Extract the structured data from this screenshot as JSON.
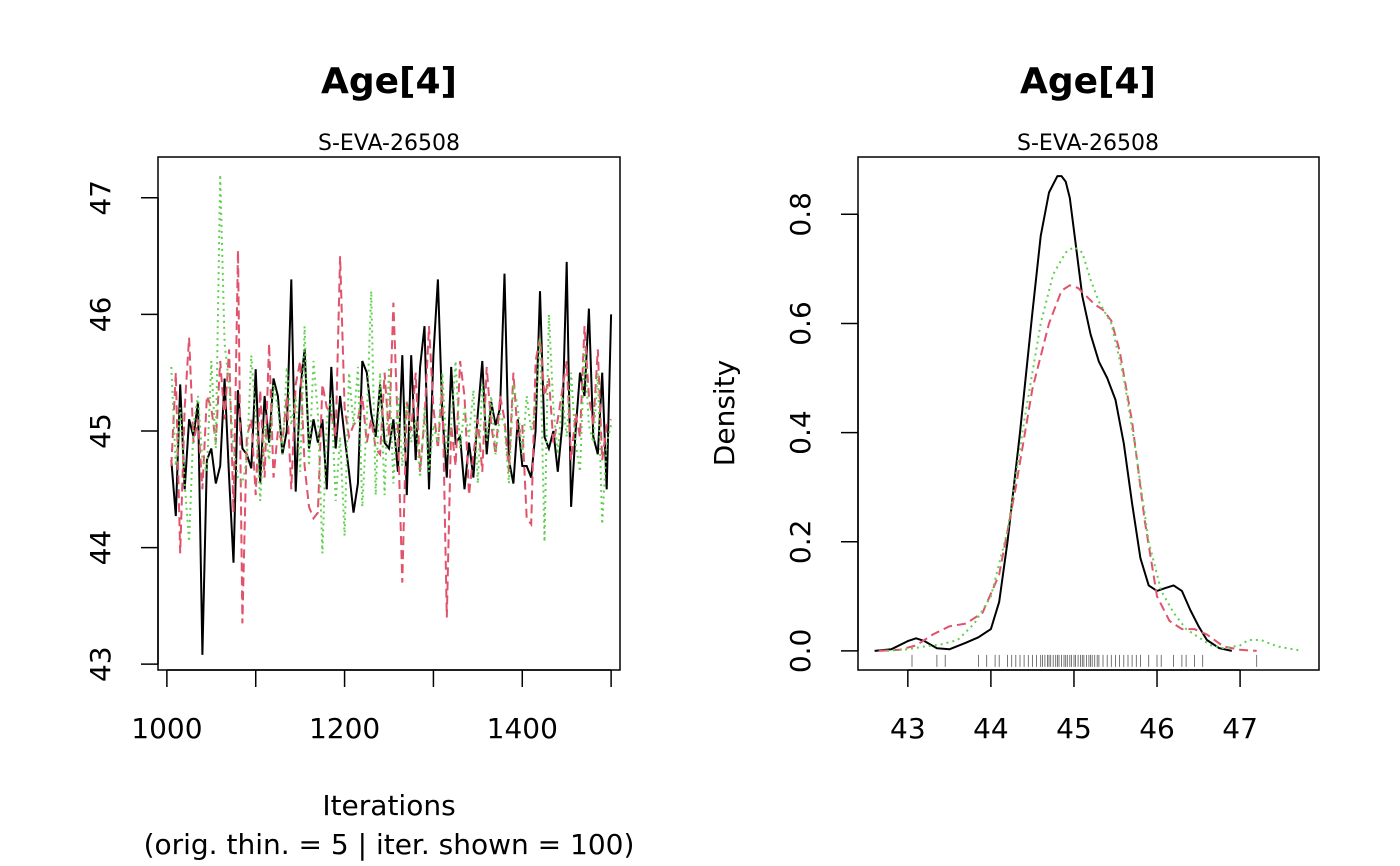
{
  "figure": {
    "background": "#ffffff",
    "series_colors": [
      "#000000",
      "#DF536B",
      "#61D04F"
    ]
  },
  "chart_data": [
    {
      "type": "line",
      "title": "Age[4]",
      "subtitle": "S-EVA-26508",
      "xlabel": "Iterations",
      "xlabel_line2": "(orig. thin. = 5 | iter. shown = 100)",
      "ylabel": "",
      "xlim": [
        990,
        1510
      ],
      "ylim": [
        42.95,
        47.35
      ],
      "xticks": [
        1000,
        1200,
        1400
      ],
      "xminor_ticks": [
        1000,
        1100,
        1200,
        1300,
        1400,
        1500
      ],
      "yticks": [
        43,
        44,
        45,
        46,
        47
      ],
      "grid": false,
      "x": [
        1005,
        1010,
        1015,
        1020,
        1025,
        1030,
        1035,
        1040,
        1045,
        1050,
        1055,
        1060,
        1065,
        1070,
        1075,
        1080,
        1085,
        1090,
        1095,
        1100,
        1105,
        1110,
        1115,
        1120,
        1125,
        1130,
        1135,
        1140,
        1145,
        1150,
        1155,
        1160,
        1165,
        1170,
        1175,
        1180,
        1185,
        1190,
        1195,
        1200,
        1205,
        1210,
        1215,
        1220,
        1225,
        1230,
        1235,
        1240,
        1245,
        1250,
        1255,
        1260,
        1265,
        1270,
        1275,
        1280,
        1285,
        1290,
        1295,
        1300,
        1305,
        1310,
        1315,
        1320,
        1325,
        1330,
        1335,
        1340,
        1345,
        1350,
        1355,
        1360,
        1365,
        1370,
        1375,
        1380,
        1385,
        1390,
        1395,
        1400,
        1405,
        1410,
        1415,
        1420,
        1425,
        1430,
        1435,
        1440,
        1445,
        1450,
        1455,
        1460,
        1465,
        1470,
        1475,
        1480,
        1485,
        1490,
        1495,
        1500
      ],
      "series": [
        {
          "color": "#000000",
          "dash": "solid",
          "values": [
            44.75,
            44.27,
            45.4,
            44.5,
            45.1,
            44.95,
            45.25,
            43.08,
            44.75,
            44.85,
            44.55,
            44.7,
            45.45,
            44.6,
            43.87,
            45.35,
            44.85,
            44.8,
            44.68,
            45.53,
            44.55,
            45.3,
            44.9,
            45.45,
            45.3,
            44.8,
            45.0,
            46.3,
            44.48,
            45.35,
            45.7,
            44.85,
            45.1,
            44.9,
            45.1,
            44.5,
            45.55,
            44.85,
            45.3,
            44.95,
            44.65,
            44.3,
            44.55,
            45.6,
            45.5,
            45.15,
            44.95,
            45.4,
            44.9,
            44.85,
            45.1,
            44.65,
            45.65,
            44.45,
            45.65,
            44.75,
            45.55,
            45.9,
            44.5,
            45.65,
            46.3,
            45.15,
            44.6,
            45.55,
            44.9,
            44.95,
            44.5,
            44.9,
            44.6,
            45.15,
            45.6,
            44.8,
            45.25,
            45.05,
            45.2,
            46.35,
            44.75,
            44.55,
            45.1,
            44.7,
            44.7,
            44.6,
            45.0,
            46.2,
            44.95,
            44.85,
            45.0,
            44.65,
            45.05,
            46.45,
            44.35,
            45.0,
            45.5,
            45.3,
            46.05,
            44.95,
            44.8,
            45.5,
            44.5,
            46.0
          ]
        },
        {
          "color": "#DF536B",
          "dash": "dashed",
          "values": [
            44.7,
            45.5,
            43.95,
            45.2,
            45.8,
            44.9,
            45.1,
            44.5,
            45.3,
            45.2,
            44.9,
            45.6,
            45.1,
            45.7,
            44.3,
            46.55,
            43.35,
            44.95,
            45.1,
            44.45,
            45.35,
            44.6,
            45.75,
            44.6,
            45.0,
            44.9,
            45.3,
            44.5,
            45.4,
            45.6,
            44.7,
            44.35,
            44.25,
            44.3,
            45.4,
            45.2,
            45.15,
            44.95,
            46.5,
            45.2,
            44.95,
            45.05,
            45.1,
            45.3,
            44.9,
            45.1,
            44.85,
            44.8,
            45.5,
            44.95,
            46.1,
            45.0,
            43.7,
            45.25,
            45.0,
            45.5,
            44.65,
            45.1,
            45.9,
            45.2,
            44.85,
            45.4,
            43.4,
            45.05,
            44.7,
            45.6,
            45.3,
            44.45,
            44.8,
            45.1,
            44.65,
            45.55,
            45.05,
            44.8,
            45.3,
            45.1,
            44.65,
            45.5,
            44.95,
            45.05,
            44.25,
            44.2,
            45.6,
            45.8,
            45.3,
            45.45,
            44.9,
            45.1,
            45.35,
            45.6,
            44.75,
            45.15,
            44.95,
            45.9,
            45.3,
            45.05,
            45.7,
            44.75,
            45.05,
            45.1
          ]
        },
        {
          "color": "#61D04F",
          "dash": "dotted",
          "values": [
            45.55,
            44.7,
            45.2,
            44.55,
            44.05,
            45.05,
            45.3,
            44.75,
            44.65,
            45.6,
            44.85,
            47.2,
            45.75,
            45.4,
            44.85,
            44.6,
            44.55,
            44.75,
            45.65,
            45.1,
            44.4,
            45.05,
            44.75,
            45.4,
            45.2,
            44.8,
            45.55,
            45.05,
            45.3,
            44.65,
            45.9,
            44.7,
            45.6,
            45.15,
            43.95,
            45.1,
            45.3,
            44.4,
            44.95,
            44.1,
            45.5,
            45.05,
            45.55,
            44.35,
            45.1,
            46.2,
            44.45,
            45.5,
            44.45,
            45.55,
            44.55,
            45.3,
            44.7,
            45.25,
            44.9,
            45.1,
            44.6,
            45.2,
            44.65,
            45.05,
            44.9,
            45.5,
            44.8,
            45.05,
            45.6,
            44.85,
            45.2,
            44.95,
            45.35,
            44.55,
            45.4,
            44.9,
            45.3,
            44.8,
            45.15,
            45.05,
            44.55,
            45.4,
            45.2,
            44.8,
            45.3,
            45.0,
            45.2,
            45.8,
            44.05,
            46.0,
            45.2,
            44.8,
            45.3,
            44.95,
            45.5,
            44.9,
            44.65,
            45.7,
            45.05,
            44.9,
            45.5,
            44.2,
            44.9,
            45.05
          ]
        }
      ]
    },
    {
      "type": "line",
      "title": "Age[4]",
      "subtitle": "S-EVA-26508",
      "xlabel": "",
      "ylabel": "Density",
      "xlim": [
        42.4,
        47.95
      ],
      "ylim": [
        -0.035,
        0.905
      ],
      "xticks": [
        43,
        44,
        45,
        46,
        47
      ],
      "yticks": [
        0.0,
        0.2,
        0.4,
        0.6,
        0.8
      ],
      "ytick_labels": [
        "0.0",
        "0.2",
        "0.4",
        "0.6",
        "0.8"
      ],
      "grid": false,
      "series": [
        {
          "color": "#000000",
          "dash": "solid",
          "x": [
            42.6,
            42.8,
            43.0,
            43.1,
            43.2,
            43.35,
            43.5,
            43.7,
            43.85,
            44.0,
            44.1,
            44.2,
            44.35,
            44.5,
            44.6,
            44.7,
            44.8,
            44.85,
            44.9,
            44.95,
            45.0,
            45.1,
            45.2,
            45.3,
            45.4,
            45.5,
            45.6,
            45.7,
            45.8,
            45.9,
            46.0,
            46.1,
            46.2,
            46.3,
            46.4,
            46.5,
            46.6,
            46.75,
            46.9
          ],
          "y": [
            0.0,
            0.003,
            0.018,
            0.023,
            0.018,
            0.005,
            0.003,
            0.015,
            0.025,
            0.04,
            0.09,
            0.2,
            0.4,
            0.62,
            0.76,
            0.84,
            0.87,
            0.87,
            0.86,
            0.83,
            0.77,
            0.65,
            0.58,
            0.53,
            0.5,
            0.46,
            0.38,
            0.27,
            0.17,
            0.12,
            0.11,
            0.115,
            0.12,
            0.11,
            0.075,
            0.045,
            0.02,
            0.005,
            0.0
          ]
        },
        {
          "color": "#DF536B",
          "dash": "dashed",
          "x": [
            42.65,
            42.9,
            43.1,
            43.3,
            43.5,
            43.7,
            43.9,
            44.1,
            44.3,
            44.5,
            44.7,
            44.85,
            44.95,
            45.05,
            45.15,
            45.25,
            45.35,
            45.45,
            45.55,
            45.7,
            45.85,
            46.0,
            46.15,
            46.3,
            46.45,
            46.6,
            46.8,
            47.0,
            47.2
          ],
          "y": [
            0.0,
            0.002,
            0.01,
            0.03,
            0.045,
            0.05,
            0.07,
            0.14,
            0.3,
            0.48,
            0.6,
            0.66,
            0.67,
            0.665,
            0.65,
            0.635,
            0.625,
            0.605,
            0.55,
            0.42,
            0.24,
            0.1,
            0.055,
            0.04,
            0.04,
            0.03,
            0.008,
            0.002,
            0.0
          ]
        },
        {
          "color": "#61D04F",
          "dash": "dotted",
          "x": [
            42.75,
            43.0,
            43.2,
            43.4,
            43.6,
            43.8,
            44.0,
            44.2,
            44.4,
            44.6,
            44.75,
            44.9,
            45.0,
            45.1,
            45.2,
            45.3,
            45.45,
            45.6,
            45.75,
            45.9,
            46.05,
            46.2,
            46.35,
            46.5,
            46.65,
            46.8,
            47.0,
            47.1,
            47.25,
            47.45,
            47.75
          ],
          "y": [
            0.0,
            0.003,
            0.008,
            0.012,
            0.02,
            0.05,
            0.1,
            0.22,
            0.42,
            0.6,
            0.69,
            0.73,
            0.74,
            0.73,
            0.68,
            0.64,
            0.6,
            0.5,
            0.36,
            0.2,
            0.11,
            0.07,
            0.04,
            0.025,
            0.01,
            0.005,
            0.01,
            0.02,
            0.02,
            0.008,
            0.0
          ]
        }
      ],
      "rug": [
        43.05,
        43.35,
        43.45,
        43.85,
        43.95,
        44.05,
        44.1,
        44.2,
        44.25,
        44.3,
        44.35,
        44.4,
        44.45,
        44.5,
        44.55,
        44.6,
        44.62,
        44.65,
        44.68,
        44.7,
        44.72,
        44.75,
        44.78,
        44.8,
        44.82,
        44.85,
        44.88,
        44.9,
        44.92,
        44.95,
        44.97,
        45.0,
        45.02,
        45.05,
        45.08,
        45.1,
        45.12,
        45.15,
        45.18,
        45.2,
        45.22,
        45.25,
        45.28,
        45.3,
        45.35,
        45.4,
        45.45,
        45.5,
        45.55,
        45.6,
        45.65,
        45.7,
        45.75,
        45.8,
        45.9,
        46.0,
        46.05,
        46.2,
        46.3,
        46.35,
        46.45,
        46.55,
        47.2
      ]
    }
  ]
}
